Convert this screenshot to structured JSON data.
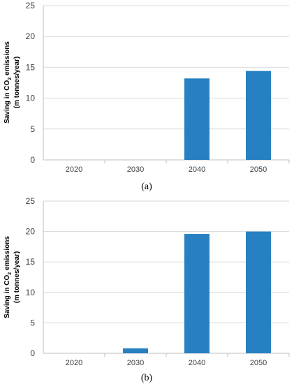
{
  "colors": {
    "bar": "#2680c2",
    "grid": "#d9d9d9",
    "axis": "#bfbfbf"
  },
  "chart_data": [
    {
      "type": "bar",
      "caption": "(a)",
      "categories": [
        "2020",
        "2030",
        "2040",
        "2050"
      ],
      "values": [
        0,
        0,
        13.2,
        14.4
      ],
      "ylabel_line1_pre": "Saving in CO",
      "ylabel_line1_sub": "2",
      "ylabel_line1_post": " emissions",
      "ylabel_line2": "(m tonnes/year)",
      "yticks": [
        "0",
        "5",
        "10",
        "15",
        "20",
        "25"
      ],
      "ylim": [
        0,
        25
      ],
      "grid": true
    },
    {
      "type": "bar",
      "caption": "(b)",
      "categories": [
        "2020",
        "2030",
        "2040",
        "2050"
      ],
      "values": [
        0,
        0.8,
        19.6,
        20.0
      ],
      "ylabel_line1_pre": "Saving in CO",
      "ylabel_line1_sub": "2",
      "ylabel_line1_post": " emissions",
      "ylabel_line2": "(m tonnes/year)",
      "yticks": [
        "0",
        "5",
        "10",
        "15",
        "20",
        "25"
      ],
      "ylim": [
        0,
        25
      ],
      "grid": true
    }
  ]
}
